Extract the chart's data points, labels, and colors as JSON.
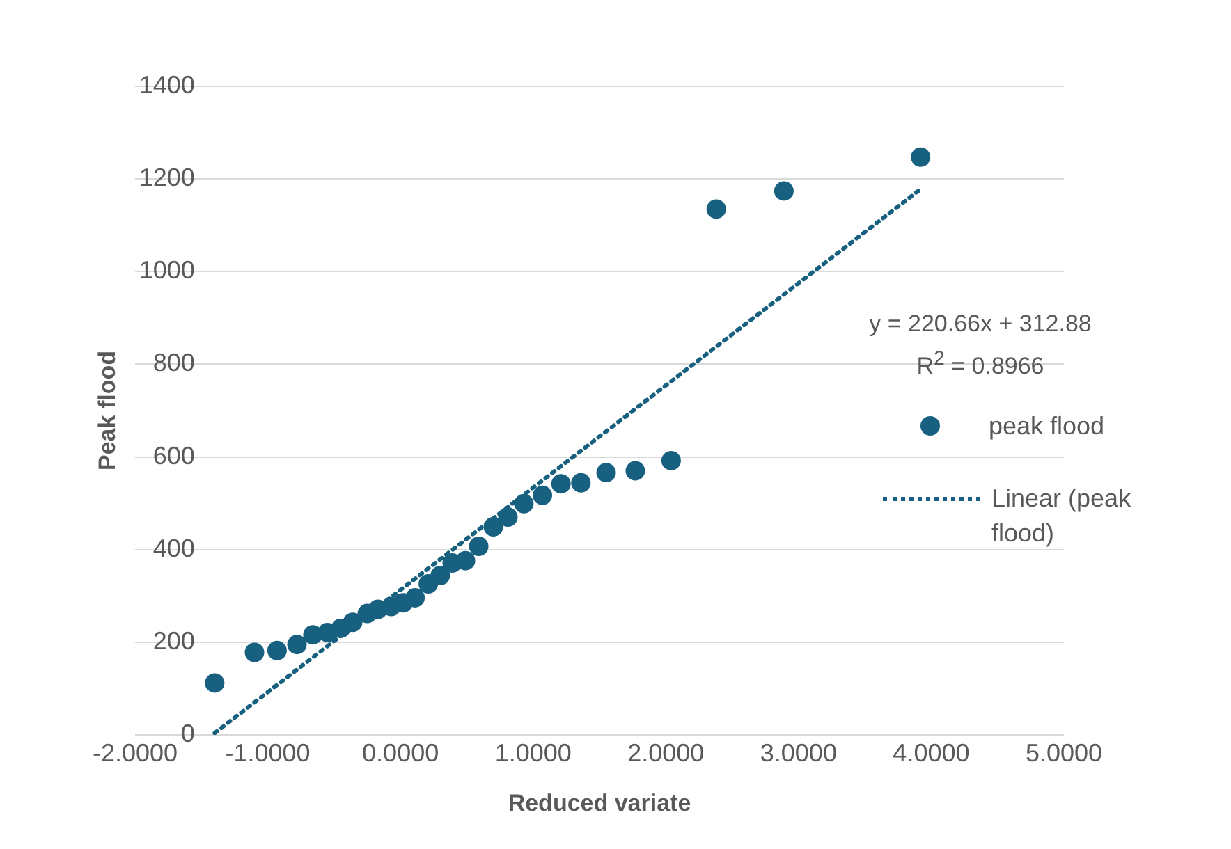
{
  "chart_data": {
    "type": "scatter",
    "xlabel": "Reduced variate",
    "ylabel": "Peak flood",
    "xlim": [
      -2,
      5
    ],
    "xticks": [
      {
        "value": -2,
        "label": "-2.0000"
      },
      {
        "value": -1,
        "label": "-1.0000"
      },
      {
        "value": 0,
        "label": "0.0000"
      },
      {
        "value": 1,
        "label": "1.0000"
      },
      {
        "value": 2,
        "label": "2.0000"
      },
      {
        "value": 3,
        "label": "3.0000"
      },
      {
        "value": 4,
        "label": "4.0000"
      },
      {
        "value": 5,
        "label": "5.0000"
      }
    ],
    "ylim": [
      0,
      1400
    ],
    "yticks": [
      0,
      200,
      400,
      600,
      800,
      1000,
      1200,
      1400
    ],
    "grid": "y",
    "legend": "right",
    "annotations": [
      "y = 220.66x + 312.88",
      "R$^{2}$ = 0.8966"
    ],
    "series": [
      {
        "name": "peak flood",
        "type": "scatter",
        "color": "#17607f",
        "marker": "circle",
        "x": [
          -1.4,
          -1.1,
          -0.93,
          -0.78,
          -0.66,
          -0.55,
          -0.45,
          -0.36,
          -0.25,
          -0.17,
          -0.07,
          0.02,
          0.11,
          0.21,
          0.3,
          0.39,
          0.49,
          0.59,
          0.7,
          0.81,
          0.93,
          1.07,
          1.21,
          1.36,
          1.55,
          1.77,
          2.04,
          2.38,
          2.89,
          3.92
        ],
        "values": [
          112,
          178,
          182,
          195,
          216,
          221,
          230,
          243,
          262,
          271,
          277,
          285,
          296,
          326,
          344,
          371,
          376,
          407,
          449,
          470,
          499,
          517,
          542,
          544,
          566,
          570,
          592,
          1135,
          1174,
          1247
        ]
      },
      {
        "name": "Linear (peak flood)",
        "type": "line",
        "color": "#17607f",
        "marker": "none",
        "line_style": "dotted",
        "x": [
          -1.4,
          3.92
        ],
        "values": [
          4,
          1178
        ]
      }
    ]
  }
}
